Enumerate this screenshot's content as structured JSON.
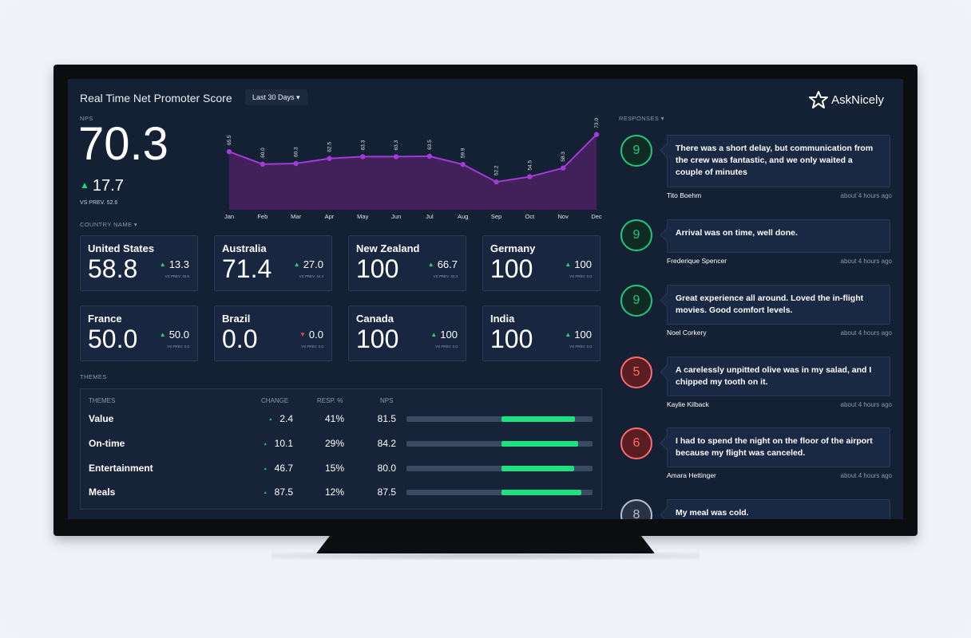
{
  "header": {
    "title": "Real Time Net Promoter Score",
    "range_label": "Last 30 Days",
    "brand": "AskNicely"
  },
  "nps": {
    "label": "NPS",
    "value": "70.3",
    "change": "17.7",
    "prev": "VS PREV. 52.6"
  },
  "chart_data": {
    "type": "area",
    "categories": [
      "Jan",
      "Feb",
      "Mar",
      "Apr",
      "May",
      "Jun",
      "Jul",
      "Aug",
      "Sep",
      "Oct",
      "Nov",
      "Dec"
    ],
    "values": [
      65.5,
      60.0,
      60.3,
      62.5,
      63.3,
      63.3,
      63.5,
      59.9,
      52.2,
      54.5,
      58.3,
      73.0
    ],
    "value_labels": [
      "65.5",
      "60.0",
      "60.3",
      "62.5",
      "63.3",
      "63.3",
      "63.5",
      "59.9",
      "52.2",
      "54.5",
      "58.3",
      "73.0"
    ],
    "line_color": "#a23bd6",
    "fill_color": "#4a2160"
  },
  "countries": {
    "label": "COUNTRY NAME",
    "items": [
      {
        "name": "United States",
        "value": "58.8",
        "change": "13.3",
        "dir": "up",
        "prev": "VS PREV. 45.5"
      },
      {
        "name": "Australia",
        "value": "71.4",
        "change": "27.0",
        "dir": "up",
        "prev": "VS PREV. 44.4"
      },
      {
        "name": "New Zealand",
        "value": "100",
        "change": "66.7",
        "dir": "up",
        "prev": "VS PREV. 33.3"
      },
      {
        "name": "Germany",
        "value": "100",
        "change": "100",
        "dir": "up",
        "prev": "VS PREV. 0.0"
      },
      {
        "name": "France",
        "value": "50.0",
        "change": "50.0",
        "dir": "up",
        "prev": "VS PREV. 0.0"
      },
      {
        "name": "Brazil",
        "value": "0.0",
        "change": "0.0",
        "dir": "down",
        "prev": "VS PREV. 0.0"
      },
      {
        "name": "Canada",
        "value": "100",
        "change": "100",
        "dir": "up",
        "prev": "VS PREV. 0.0"
      },
      {
        "name": "India",
        "value": "100",
        "change": "100",
        "dir": "up",
        "prev": "VS PREV. 0.0"
      }
    ]
  },
  "themes": {
    "label": "THEMES",
    "headers": {
      "theme": "THEMES",
      "change": "CHANGE",
      "resp": "RESP. %",
      "nps": "NPS"
    },
    "rows": [
      {
        "name": "Value",
        "change": "2.4",
        "resp": "41%",
        "nps": "81.5",
        "bar": 0.81
      },
      {
        "name": "On-time",
        "change": "10.1",
        "resp": "29%",
        "nps": "84.2",
        "bar": 0.84
      },
      {
        "name": "Entertainment",
        "change": "46.7",
        "resp": "15%",
        "nps": "80.0",
        "bar": 0.8
      },
      {
        "name": "Meals",
        "change": "87.5",
        "resp": "12%",
        "nps": "87.5",
        "bar": 0.875
      }
    ]
  },
  "responses": {
    "label": "RESPONSES",
    "items": [
      {
        "score": "9",
        "type": "green",
        "text": "There was a short delay, but communication from the crew was fantastic, and we only waited a couple of minutes",
        "name": "Tito Boehm",
        "time": "about 4 hours ago"
      },
      {
        "score": "9",
        "type": "green",
        "text": "Arrival was on time, well done.",
        "name": "Frederique Spencer",
        "time": "about 4 hours ago"
      },
      {
        "score": "9",
        "type": "green",
        "text": "Great experience all around. Loved the in-flight movies. Good comfort levels.",
        "name": "Noel Corkery",
        "time": "about 4 hours ago"
      },
      {
        "score": "5",
        "type": "red",
        "text": "A carelessly unpitted olive was in my salad, and I chipped my tooth on it.",
        "name": "Kaylie Kilback",
        "time": "about 4 hours ago"
      },
      {
        "score": "6",
        "type": "red",
        "text": "I had to spend the night on the floor of the airport because my flight was canceled.",
        "name": "Amara Hettinger",
        "time": "about 4 hours ago"
      },
      {
        "score": "8",
        "type": "grey",
        "text": "My meal was cold.",
        "name": "",
        "time": ""
      }
    ]
  }
}
